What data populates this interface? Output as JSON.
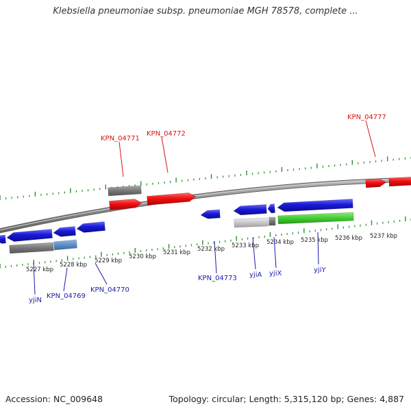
{
  "title": "Klebsiella pneumoniae subsp. pneumoniae MGH 78578, complete ...",
  "footer": {
    "accession": "Accession: NC_009648",
    "summary": "Topology: circular; Length: 5,315,120 bp; Genes: 4,887"
  },
  "colors": {
    "backbone": "#8c8c8c",
    "top_ticks": "#2e8b2e",
    "bottom_ticks": "#2e8b2e",
    "forward_gene": "#ee1111",
    "forward_label": "#dd1111",
    "reverse_gene": "#1a1ad8",
    "reverse_label": "#1a1aa8",
    "pseudo_gene": "#777777",
    "light_gene": "#c8c8c8",
    "rna_gene": "#44cc33",
    "highlight_gene": "#5e8ec8",
    "scale_text": "#222222"
  },
  "scale_labels": [
    "5227 kbp",
    "5228 kbp",
    "5229 kbp",
    "5230 kbp",
    "5231 kbp",
    "5232 kbp",
    "5233 kbp",
    "5234 kbp",
    "5235 kbp",
    "5236 kbp",
    "5237 kbp"
  ],
  "gene_labels": [
    {
      "text": "KPN_04771",
      "strand": "forward"
    },
    {
      "text": "KPN_04772",
      "strand": "forward"
    },
    {
      "text": "KPN_04777",
      "strand": "forward"
    },
    {
      "text": "yjiN",
      "strand": "reverse"
    },
    {
      "text": "KPN_04769",
      "strand": "reverse"
    },
    {
      "text": "KPN_04770",
      "strand": "reverse"
    },
    {
      "text": "KPN_04773",
      "strand": "reverse"
    },
    {
      "text": "yjiA",
      "strand": "reverse"
    },
    {
      "text": "yjiX",
      "strand": "reverse"
    },
    {
      "text": "yjiY",
      "strand": "reverse"
    }
  ]
}
